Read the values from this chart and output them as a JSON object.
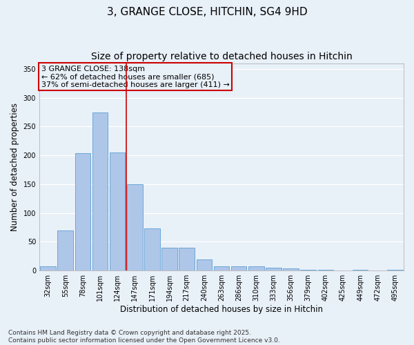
{
  "title": "3, GRANGE CLOSE, HITCHIN, SG4 9HD",
  "subtitle": "Size of property relative to detached houses in Hitchin",
  "xlabel": "Distribution of detached houses by size in Hitchin",
  "ylabel": "Number of detached properties",
  "bar_labels": [
    "32sqm",
    "55sqm",
    "78sqm",
    "101sqm",
    "124sqm",
    "147sqm",
    "171sqm",
    "194sqm",
    "217sqm",
    "240sqm",
    "263sqm",
    "286sqm",
    "310sqm",
    "333sqm",
    "356sqm",
    "379sqm",
    "402sqm",
    "425sqm",
    "449sqm",
    "472sqm",
    "495sqm"
  ],
  "bar_values": [
    7,
    70,
    204,
    275,
    205,
    150,
    73,
    40,
    40,
    20,
    8,
    8,
    7,
    5,
    4,
    2,
    1,
    0,
    1,
    0,
    2
  ],
  "bar_color": "#aec6e8",
  "bar_edge_color": "#5a9fd4",
  "bg_color": "#e8f0f8",
  "grid_color": "#ffffff",
  "ylim": [
    0,
    360
  ],
  "yticks": [
    0,
    50,
    100,
    150,
    200,
    250,
    300,
    350
  ],
  "vline_x": 4.5,
  "annotation_line1": "3 GRANGE CLOSE: 138sqm",
  "annotation_line2": "← 62% of detached houses are smaller (685)",
  "annotation_line3": "37% of semi-detached houses are larger (411) →",
  "annotation_box_color": "#cc0000",
  "vline_color": "#cc0000",
  "footer1": "Contains HM Land Registry data © Crown copyright and database right 2025.",
  "footer2": "Contains public sector information licensed under the Open Government Licence v3.0.",
  "title_fontsize": 11,
  "subtitle_fontsize": 10,
  "axis_label_fontsize": 8.5,
  "tick_fontsize": 7,
  "annotation_fontsize": 8,
  "footer_fontsize": 6.5
}
